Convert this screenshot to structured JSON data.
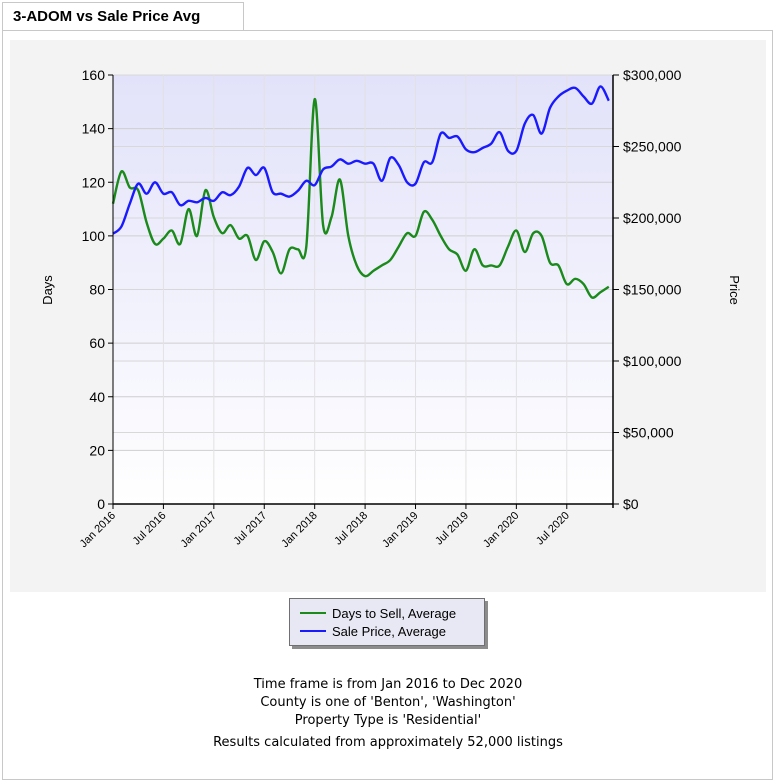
{
  "page": {
    "title": "3-ADOM vs Sale Price Avg"
  },
  "chart_data": {
    "type": "line",
    "title": "3-ADOM vs Sale Price Avg",
    "y_left_label": "Days",
    "y_right_label": "Price",
    "y_left_range": [
      0,
      160
    ],
    "y_left_ticks": [
      "0",
      "20",
      "40",
      "60",
      "80",
      "100",
      "120",
      "140",
      "160"
    ],
    "y_right_range": [
      0,
      300000
    ],
    "y_right_ticks": [
      "$0",
      "$50,000",
      "$100,000",
      "$150,000",
      "$200,000",
      "$250,000",
      "$300,000"
    ],
    "x_ticks": [
      "Jan 2016",
      "Jul 2016",
      "Jan 2017",
      "Jul 2017",
      "Jan 2018",
      "Jul 2018",
      "Jan 2019",
      "Jul 2019",
      "Jan 2020",
      "Jul 2020"
    ],
    "x_range_months": [
      0,
      59.5
    ],
    "grid": true,
    "legend_position": "bottom",
    "series": [
      {
        "name": "Days to Sell, Average",
        "axis": "left",
        "color": "#1a8a1a",
        "values": [
          112,
          124,
          118,
          117,
          105,
          97,
          99,
          102,
          97,
          110,
          100,
          117,
          107,
          101,
          104,
          99,
          100,
          91,
          98,
          94,
          86,
          95,
          95,
          96,
          151,
          104,
          107,
          121,
          100,
          89,
          85,
          87,
          89,
          91,
          96,
          101,
          100,
          109,
          106,
          100,
          95,
          93,
          87,
          95,
          89,
          89,
          89,
          96,
          102,
          94,
          101,
          100,
          90,
          89,
          82,
          84,
          82,
          77,
          79,
          81
        ]
      },
      {
        "name": "Sale Price, Average",
        "axis": "right",
        "color": "#1a1aff",
        "values": [
          189000,
          194000,
          210000,
          224000,
          217000,
          225000,
          217000,
          218000,
          209000,
          212000,
          211000,
          214000,
          212000,
          218000,
          216000,
          222000,
          235000,
          230000,
          235000,
          218000,
          217000,
          215000,
          219000,
          226000,
          223000,
          234000,
          236000,
          241000,
          238000,
          240000,
          238000,
          238000,
          226000,
          242000,
          237000,
          225000,
          224000,
          239000,
          239000,
          259000,
          256000,
          257000,
          248000,
          246000,
          249000,
          252000,
          260000,
          247000,
          247000,
          266000,
          272000,
          259000,
          277000,
          285000,
          289000,
          291000,
          285000,
          280000,
          292000,
          282000
        ]
      }
    ]
  },
  "notes": {
    "line1": "Time frame is from Jan 2016 to Dec 2020",
    "line2": "County is one of 'Benton', 'Washington'",
    "line3": "Property Type is 'Residential'",
    "line4": "Results calculated from approximately 52,000 listings"
  }
}
